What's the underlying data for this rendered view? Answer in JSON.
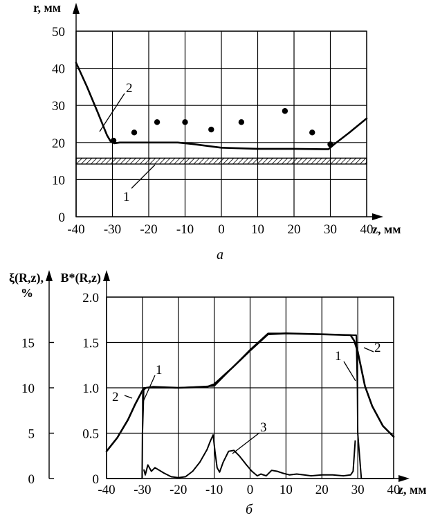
{
  "chart_data": [
    {
      "id": "a",
      "type": "line",
      "caption": "а",
      "xlabel": "z, мм",
      "ylabel": "r, мм",
      "xlim": [
        -40,
        40
      ],
      "ylim": [
        0,
        50
      ],
      "x_ticks": [
        -40,
        -30,
        -20,
        -10,
        0,
        10,
        20,
        30,
        40
      ],
      "y_ticks": [
        0,
        10,
        20,
        30,
        40,
        50
      ],
      "x_tick_labels": [
        "-40",
        "-30",
        "-20",
        "-10",
        "0",
        "10",
        "20",
        "30",
        "40"
      ],
      "y_tick_labels": [
        "0",
        "10",
        "20",
        "30",
        "40",
        "50"
      ],
      "grid": true,
      "series": [
        {
          "label": "2",
          "kind": "line",
          "x": [
            -40,
            -37,
            -34,
            -31.5,
            -30.5,
            -29.5,
            -28,
            -20,
            -12,
            -8,
            0,
            10,
            20,
            28,
            29.5,
            31,
            35,
            40
          ],
          "y": [
            41.5,
            35,
            28,
            22,
            20.3,
            19.8,
            20,
            20,
            20,
            19.6,
            18.6,
            18.3,
            18.3,
            18.2,
            18.2,
            19.5,
            22.5,
            26.5
          ]
        },
        {
          "label": "1",
          "kind": "band",
          "x": [
            -40,
            40
          ],
          "y_low": 14.2,
          "y_high": 15.8
        },
        {
          "kind": "scatter",
          "x": [
            -29.7,
            -24,
            -17.7,
            -10,
            -2.8,
            5.5,
            17.5,
            25,
            30
          ],
          "y": [
            20.5,
            22.7,
            25.5,
            25.5,
            23.5,
            25.5,
            28.5,
            22.7,
            19.5
          ]
        }
      ]
    },
    {
      "id": "b",
      "type": "line",
      "caption": "б",
      "xlabel": "z, мм",
      "ylabel": "B*(R,z)",
      "ylabel2": "ξ(R,z),",
      "ylabel2_unit": "%",
      "xlim": [
        -40,
        40
      ],
      "ylim": [
        0,
        2.0
      ],
      "y2lim": [
        0,
        20
      ],
      "x_ticks": [
        -40,
        -30,
        -20,
        -10,
        0,
        10,
        20,
        30,
        40
      ],
      "y_ticks": [
        0,
        0.5,
        1.0,
        1.5,
        2.0
      ],
      "y2_ticks": [
        0,
        5,
        10,
        15
      ],
      "x_tick_labels": [
        "-40",
        "-30",
        "-20",
        "-10",
        "0",
        "10",
        "20",
        "30",
        "40"
      ],
      "y_tick_labels": [
        "0",
        "0.5",
        "1.0",
        "1.5",
        "2.0"
      ],
      "y2_tick_labels": [
        "0",
        "5",
        "10",
        "15"
      ],
      "grid": true,
      "series": [
        {
          "label": "1",
          "x": [
            -40,
            -31,
            -30.1,
            -30,
            -29.6,
            -25,
            -20,
            -10,
            -5,
            0,
            5,
            10,
            20,
            29,
            29.6,
            29.9,
            30,
            31,
            40
          ],
          "y": [
            0,
            0,
            0,
            0.5,
            1.0,
            1.0,
            1.0,
            1.02,
            1.22,
            1.42,
            1.6,
            1.6,
            1.59,
            1.58,
            1.58,
            1.0,
            0.5,
            0,
            0
          ]
        },
        {
          "label": "2",
          "x": [
            -40,
            -37,
            -34,
            -32,
            -30,
            -29,
            -27,
            -20,
            -12,
            -10,
            -5,
            0,
            5,
            10,
            20,
            28,
            29,
            30,
            32,
            34,
            37,
            40
          ],
          "y": [
            0.3,
            0.45,
            0.65,
            0.82,
            0.97,
            1.0,
            1.01,
            1.0,
            1.01,
            1.04,
            1.22,
            1.41,
            1.59,
            1.6,
            1.59,
            1.58,
            1.52,
            1.4,
            1.02,
            0.8,
            0.58,
            0.46
          ]
        },
        {
          "label": "3",
          "x": [
            -29.6,
            -29.2,
            -28.5,
            -27.5,
            -26.5,
            -24,
            -22,
            -20,
            -18,
            -16,
            -14,
            -12,
            -11,
            -10.3,
            -9.8,
            -9.2,
            -8.5,
            -7.5,
            -6,
            -4.5,
            -3,
            -1,
            0.5,
            2,
            3,
            4.5,
            6,
            7.5,
            9,
            11,
            13,
            15,
            17,
            20,
            23,
            26,
            28,
            28.7,
            29.3
          ],
          "y": [
            1.0,
            0.4,
            1.5,
            0.8,
            1.2,
            0.6,
            0.2,
            0.1,
            0.2,
            0.8,
            1.8,
            3.2,
            4.2,
            4.8,
            3.0,
            1.2,
            0.7,
            1.8,
            3.0,
            3.1,
            2.5,
            1.5,
            0.8,
            0.3,
            0.5,
            0.3,
            0.9,
            0.8,
            0.6,
            0.4,
            0.5,
            0.4,
            0.3,
            0.4,
            0.4,
            0.3,
            0.4,
            0.8,
            4.2
          ]
        }
      ]
    }
  ]
}
